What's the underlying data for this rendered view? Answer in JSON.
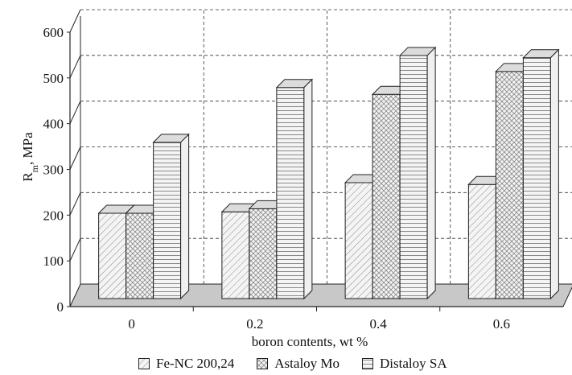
{
  "chart_data": {
    "type": "bar",
    "title": "",
    "xlabel": "boron contents, wt %",
    "ylabel": "R_m, MPa",
    "ylabel_main": "R",
    "ylabel_sub": "m",
    "ylabel_rest": ", MPa",
    "categories": [
      "0",
      "0.2",
      "0.4",
      "0.6"
    ],
    "ylim": [
      0,
      600
    ],
    "yticks": [
      0,
      100,
      200,
      300,
      400,
      500,
      600
    ],
    "grid": true,
    "legend_position": "bottom",
    "series": [
      {
        "name": "Fe-NC 200,24",
        "pattern": "diagonal",
        "values": [
          190,
          193,
          257,
          253
        ]
      },
      {
        "name": "Astaloy Mo",
        "pattern": "crosshatch",
        "values": [
          190,
          200,
          450,
          500
        ]
      },
      {
        "name": "Distaloy SA",
        "pattern": "horizontal",
        "values": [
          345,
          465,
          535,
          530
        ]
      }
    ]
  }
}
